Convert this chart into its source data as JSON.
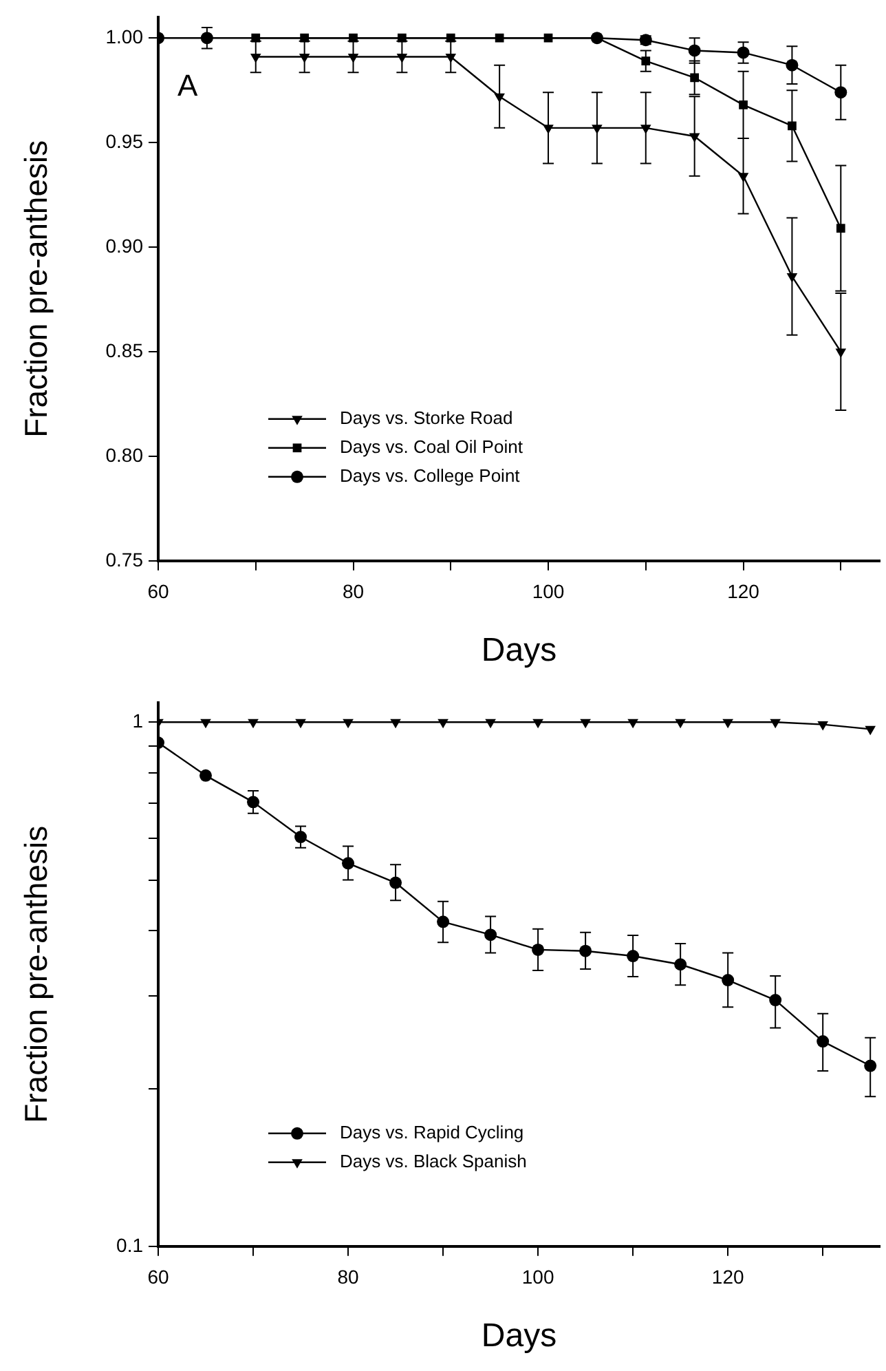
{
  "chart_data": [
    {
      "type": "line",
      "xlabel": "Days",
      "ylabel": "Fraction pre-anthesis",
      "annotations": [
        "A"
      ],
      "legend": "bottom left",
      "grid": false,
      "x": [
        60,
        65,
        70,
        75,
        80,
        85,
        90,
        95,
        100,
        105,
        110,
        115,
        120,
        125,
        130
      ],
      "xlim": [
        60,
        134
      ],
      "xticks": [
        60,
        {
          "value": 70,
          "label": null
        },
        80,
        {
          "value": 90,
          "label": null
        },
        100,
        {
          "value": 110,
          "label": null
        },
        120,
        {
          "value": 130,
          "label": null
        }
      ],
      "ylim": [
        0.75,
        1.01
      ],
      "yticks": [
        {
          "value": 0.75,
          "label": "0.75"
        },
        {
          "value": 0.8,
          "label": "0.80"
        },
        {
          "value": 0.85,
          "label": "0.85"
        },
        {
          "value": 0.9,
          "label": "0.90"
        },
        {
          "value": 0.95,
          "label": "0.95"
        },
        {
          "value": 1,
          "label": "1.00"
        }
      ],
      "series": [
        {
          "name": "Days vs. Storke Road",
          "color": "#000000",
          "marker": "triangle",
          "values": [
            null,
            null,
            0.991,
            0.991,
            0.991,
            0.991,
            0.991,
            0.972,
            0.957,
            0.957,
            0.957,
            0.953,
            0.934,
            0.886,
            0.85
          ],
          "errors": [
            null,
            null,
            0.0075,
            0.0075,
            0.0075,
            0.0075,
            0.0075,
            0.015,
            0.017,
            0.017,
            0.017,
            0.019,
            0.018,
            0.028,
            0.028
          ]
        },
        {
          "name": "Days vs. Coal Oil Point",
          "color": "#000000",
          "marker": "square",
          "values": [
            null,
            null,
            1,
            1,
            1,
            1,
            1,
            1,
            1,
            1,
            0.989,
            0.981,
            0.968,
            0.958,
            0.909
          ],
          "errors": [
            null,
            null,
            null,
            null,
            null,
            null,
            null,
            null,
            null,
            null,
            0.005,
            0.008,
            0.016,
            0.017,
            0.03
          ]
        },
        {
          "name": "Days vs. College Point",
          "color": "#000000",
          "marker": "circle",
          "values": [
            1,
            1,
            null,
            null,
            null,
            null,
            null,
            null,
            null,
            1,
            0.999,
            0.994,
            0.993,
            0.987,
            0.974
          ],
          "errors": [
            null,
            0.005,
            null,
            null,
            null,
            null,
            null,
            null,
            null,
            null,
            0.002,
            0.006,
            0.005,
            0.009,
            0.013
          ]
        }
      ]
    },
    {
      "type": "line",
      "xlabel": "Days",
      "ylabel": "Fraction pre-anthesis",
      "legend": "bottom left",
      "log": "y",
      "grid": false,
      "x": [
        60,
        65,
        70,
        75,
        80,
        85,
        90,
        95,
        100,
        105,
        110,
        115,
        120,
        125,
        130,
        135
      ],
      "xlim": [
        60,
        136
      ],
      "xticks": [
        60,
        {
          "value": 70,
          "label": null
        },
        80,
        {
          "value": 90,
          "label": null
        },
        100,
        {
          "value": 110,
          "label": null
        },
        120,
        {
          "value": 130,
          "label": null
        }
      ],
      "ylim": [
        0.1,
        1.09
      ],
      "yticks": [
        0.1,
        {
          "value": 0.2,
          "label": null
        },
        {
          "value": 0.3,
          "label": null
        },
        {
          "value": 0.4,
          "label": null
        },
        {
          "value": 0.5,
          "label": null
        },
        {
          "value": 0.6,
          "label": null
        },
        {
          "value": 0.7,
          "label": null
        },
        {
          "value": 0.8,
          "label": null
        },
        {
          "value": 0.9,
          "label": null
        },
        1
      ],
      "series": [
        {
          "name": "Days vs. Rapid Cycling",
          "color": "#000000",
          "marker": "circle",
          "values": [
            0.914,
            0.791,
            0.704,
            0.604,
            0.538,
            0.494,
            0.416,
            0.393,
            0.368,
            0.366,
            0.358,
            0.345,
            0.322,
            0.295,
            0.246,
            0.221
          ],
          "errors": [
            null,
            null,
            [
              0.67,
              0.74
            ],
            [
              0.576,
              0.633
            ],
            [
              0.5,
              0.58
            ],
            [
              0.457,
              0.535
            ],
            [
              0.38,
              0.455
            ],
            [
              0.363,
              0.426
            ],
            [
              0.336,
              0.403
            ],
            [
              0.338,
              0.397
            ],
            [
              0.327,
              0.392
            ],
            [
              0.315,
              0.378
            ],
            [
              0.286,
              0.363
            ],
            [
              0.261,
              0.328
            ],
            [
              0.216,
              0.278
            ],
            [
              0.193,
              0.25
            ]
          ]
        },
        {
          "name": "Days vs. Black Spanish",
          "color": "#000000",
          "marker": "triangle",
          "values": [
            1,
            1,
            1,
            1,
            1,
            1,
            1,
            1,
            1,
            1,
            1,
            1,
            1,
            1,
            0.99,
            0.97
          ]
        }
      ]
    }
  ]
}
